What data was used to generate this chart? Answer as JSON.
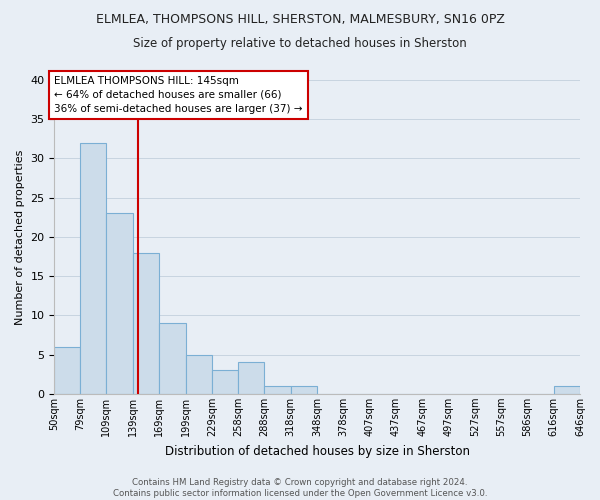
{
  "title1": "ELMLEA, THOMPSONS HILL, SHERSTON, MALMESBURY, SN16 0PZ",
  "title2": "Size of property relative to detached houses in Sherston",
  "xlabel": "Distribution of detached houses by size in Sherston",
  "ylabel": "Number of detached properties",
  "bar_color": "#ccdcea",
  "bar_edge_color": "#7bafd4",
  "bins": [
    50,
    79,
    109,
    139,
    169,
    199,
    229,
    258,
    288,
    318,
    348,
    378,
    407,
    437,
    467,
    497,
    527,
    557,
    586,
    616,
    646
  ],
  "counts": [
    6,
    32,
    23,
    18,
    9,
    5,
    3,
    4,
    1,
    1,
    0,
    0,
    0,
    0,
    0,
    0,
    0,
    0,
    0,
    1
  ],
  "tick_labels": [
    "50sqm",
    "79sqm",
    "109sqm",
    "139sqm",
    "169sqm",
    "199sqm",
    "229sqm",
    "258sqm",
    "288sqm",
    "318sqm",
    "348sqm",
    "378sqm",
    "407sqm",
    "437sqm",
    "467sqm",
    "497sqm",
    "527sqm",
    "557sqm",
    "586sqm",
    "616sqm",
    "646sqm"
  ],
  "vline_x": 145,
  "vline_color": "#cc0000",
  "annotation_text": "ELMLEA THOMPSONS HILL: 145sqm\n← 64% of detached houses are smaller (66)\n36% of semi-detached houses are larger (37) →",
  "annotation_box_color": "#ffffff",
  "annotation_box_edge": "#cc0000",
  "ylim": [
    0,
    40
  ],
  "yticks": [
    0,
    5,
    10,
    15,
    20,
    25,
    30,
    35,
    40
  ],
  "footer": "Contains HM Land Registry data © Crown copyright and database right 2024.\nContains public sector information licensed under the Open Government Licence v3.0.",
  "grid_color": "#c8d4e0",
  "bg_color": "#e8eef5"
}
